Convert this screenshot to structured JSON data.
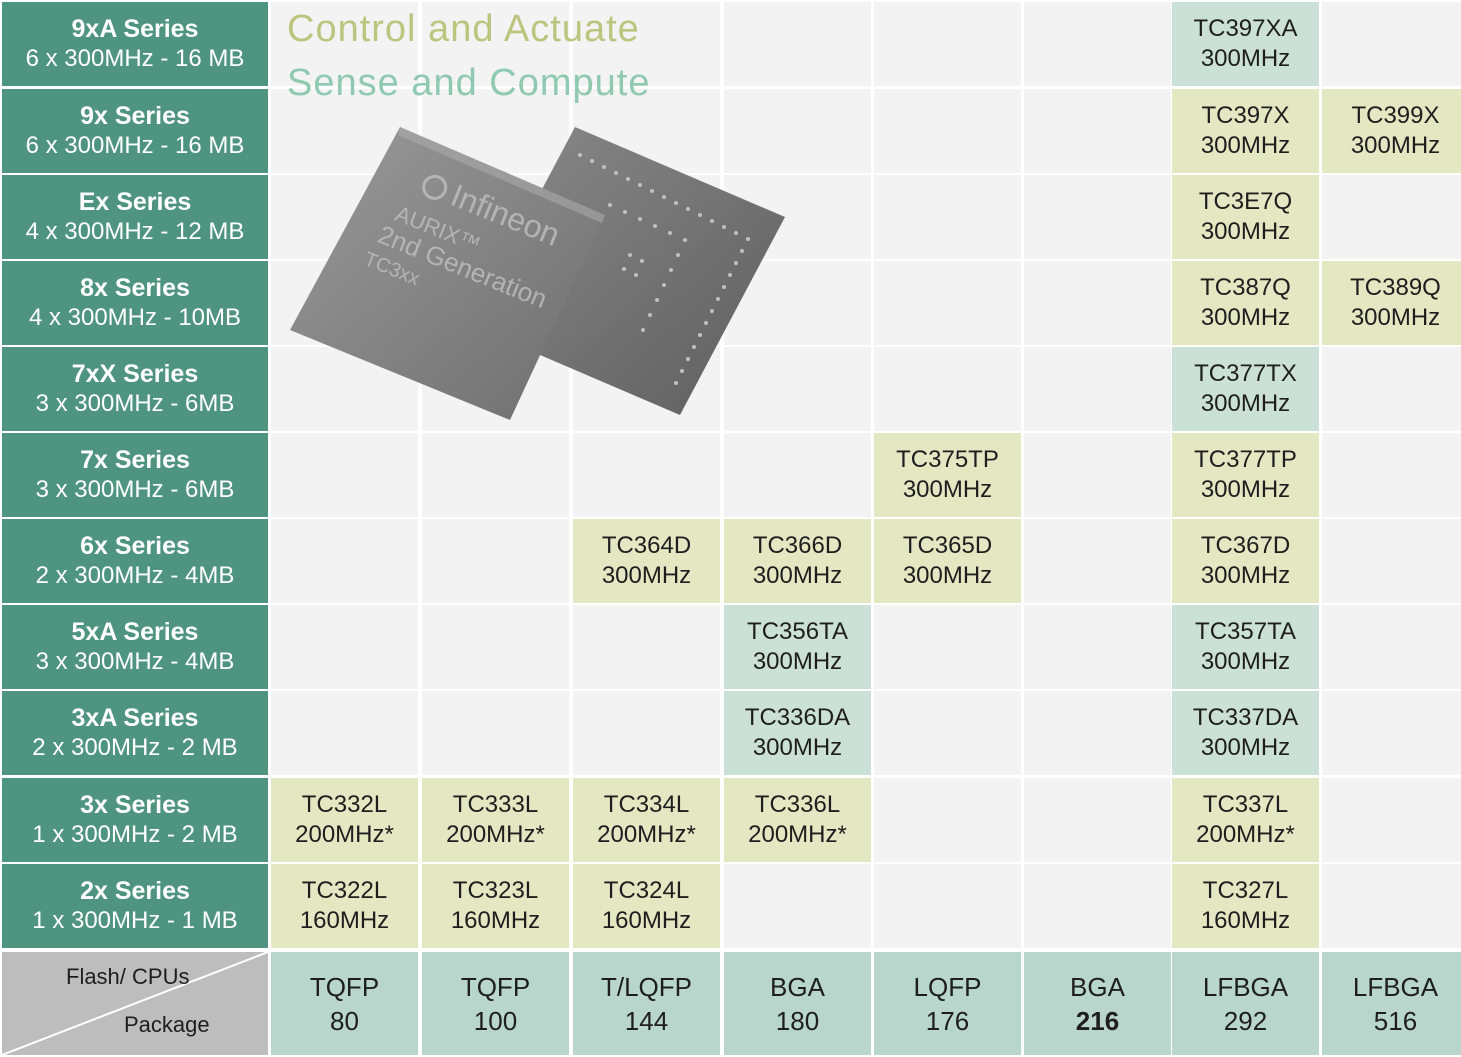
{
  "headline": {
    "line1": "Control and Actuate",
    "line2": "Sense and Compute"
  },
  "image": {
    "brand": "Infineon",
    "line1": "AURIX™",
    "line2": "2nd Generation",
    "line3": "TC3xx"
  },
  "corner": {
    "top": "Flash/ CPUs",
    "bottom": "Package"
  },
  "series": [
    {
      "name": "9xA Series",
      "spec": "6 x 300MHz - 16 MB"
    },
    {
      "name": "9x Series",
      "spec": "6 x 300MHz - 16 MB"
    },
    {
      "name": "Ex Series",
      "spec": "4 x 300MHz - 12 MB"
    },
    {
      "name": "8x Series",
      "spec": "4 x 300MHz - 10MB"
    },
    {
      "name": "7xX Series",
      "spec": "3 x 300MHz - 6MB"
    },
    {
      "name": "7x Series",
      "spec": "3 x 300MHz - 6MB"
    },
    {
      "name": "6x Series",
      "spec": "2 x 300MHz - 4MB"
    },
    {
      "name": "5xA Series",
      "spec": "3 x 300MHz - 4MB"
    },
    {
      "name": "3xA Series",
      "spec": "2 x 300MHz - 2 MB"
    },
    {
      "name": "3x Series",
      "spec": "1 x 300MHz - 2 MB"
    },
    {
      "name": "2x Series",
      "spec": "1 x 300MHz - 1 MB"
    }
  ],
  "packages": [
    {
      "type": "TQFP",
      "pins": "80"
    },
    {
      "type": "TQFP",
      "pins": "100"
    },
    {
      "type": "T/LQFP",
      "pins": "144"
    },
    {
      "type": "BGA",
      "pins": "180"
    },
    {
      "type": "LQFP",
      "pins": "176"
    },
    {
      "type": "BGA",
      "pins": "216"
    },
    {
      "type": "LFBGA",
      "pins": "292"
    },
    {
      "type": "LFBGA",
      "pins": "516"
    }
  ],
  "chips": [
    {
      "name": "TC397XA",
      "freq": "300MHz",
      "row": 0,
      "col": 6,
      "color": "blue"
    },
    {
      "name": "TC397X",
      "freq": "300MHz",
      "row": 1,
      "col": 6,
      "color": "green"
    },
    {
      "name": "TC399X",
      "freq": "300MHz",
      "row": 1,
      "col": 7,
      "color": "green"
    },
    {
      "name": "TC3E7Q",
      "freq": "300MHz",
      "row": 2,
      "col": 6,
      "color": "green"
    },
    {
      "name": "TC387Q",
      "freq": "300MHz",
      "row": 3,
      "col": 6,
      "color": "green"
    },
    {
      "name": "TC389Q",
      "freq": "300MHz",
      "row": 3,
      "col": 7,
      "color": "green"
    },
    {
      "name": "TC377TX",
      "freq": "300MHz",
      "row": 4,
      "col": 6,
      "color": "blue"
    },
    {
      "name": "TC375TP",
      "freq": "300MHz",
      "row": 5,
      "col": 4,
      "color": "green"
    },
    {
      "name": "TC377TP",
      "freq": "300MHz",
      "row": 5,
      "col": 6,
      "color": "green"
    },
    {
      "name": "TC364D",
      "freq": "300MHz",
      "row": 6,
      "col": 2,
      "color": "green"
    },
    {
      "name": "TC366D",
      "freq": "300MHz",
      "row": 6,
      "col": 3,
      "color": "green"
    },
    {
      "name": "TC365D",
      "freq": "300MHz",
      "row": 6,
      "col": 4,
      "color": "green"
    },
    {
      "name": "TC367D",
      "freq": "300MHz",
      "row": 6,
      "col": 6,
      "color": "green"
    },
    {
      "name": "TC356TA",
      "freq": "300MHz",
      "row": 7,
      "col": 3,
      "color": "blue"
    },
    {
      "name": "TC357TA",
      "freq": "300MHz",
      "row": 7,
      "col": 6,
      "color": "blue"
    },
    {
      "name": "TC336DA",
      "freq": "300MHz",
      "row": 8,
      "col": 3,
      "color": "blue"
    },
    {
      "name": "TC337DA",
      "freq": "300MHz",
      "row": 8,
      "col": 6,
      "color": "blue"
    },
    {
      "name": "TC332L",
      "freq": "200MHz*",
      "row": 9,
      "col": 0,
      "color": "green"
    },
    {
      "name": "TC333L",
      "freq": "200MHz*",
      "row": 9,
      "col": 1,
      "color": "green"
    },
    {
      "name": "TC334L",
      "freq": "200MHz*",
      "row": 9,
      "col": 2,
      "color": "green"
    },
    {
      "name": "TC336L",
      "freq": "200MHz*",
      "row": 9,
      "col": 3,
      "color": "green"
    },
    {
      "name": "TC337L",
      "freq": "200MHz*",
      "row": 9,
      "col": 6,
      "color": "green"
    },
    {
      "name": "TC322L",
      "freq": "160MHz",
      "row": 10,
      "col": 0,
      "color": "green"
    },
    {
      "name": "TC323L",
      "freq": "160MHz",
      "row": 10,
      "col": 1,
      "color": "green"
    },
    {
      "name": "TC324L",
      "freq": "160MHz",
      "row": 10,
      "col": 2,
      "color": "green"
    },
    {
      "name": "TC327L",
      "freq": "160MHz",
      "row": 10,
      "col": 6,
      "color": "green"
    }
  ]
}
